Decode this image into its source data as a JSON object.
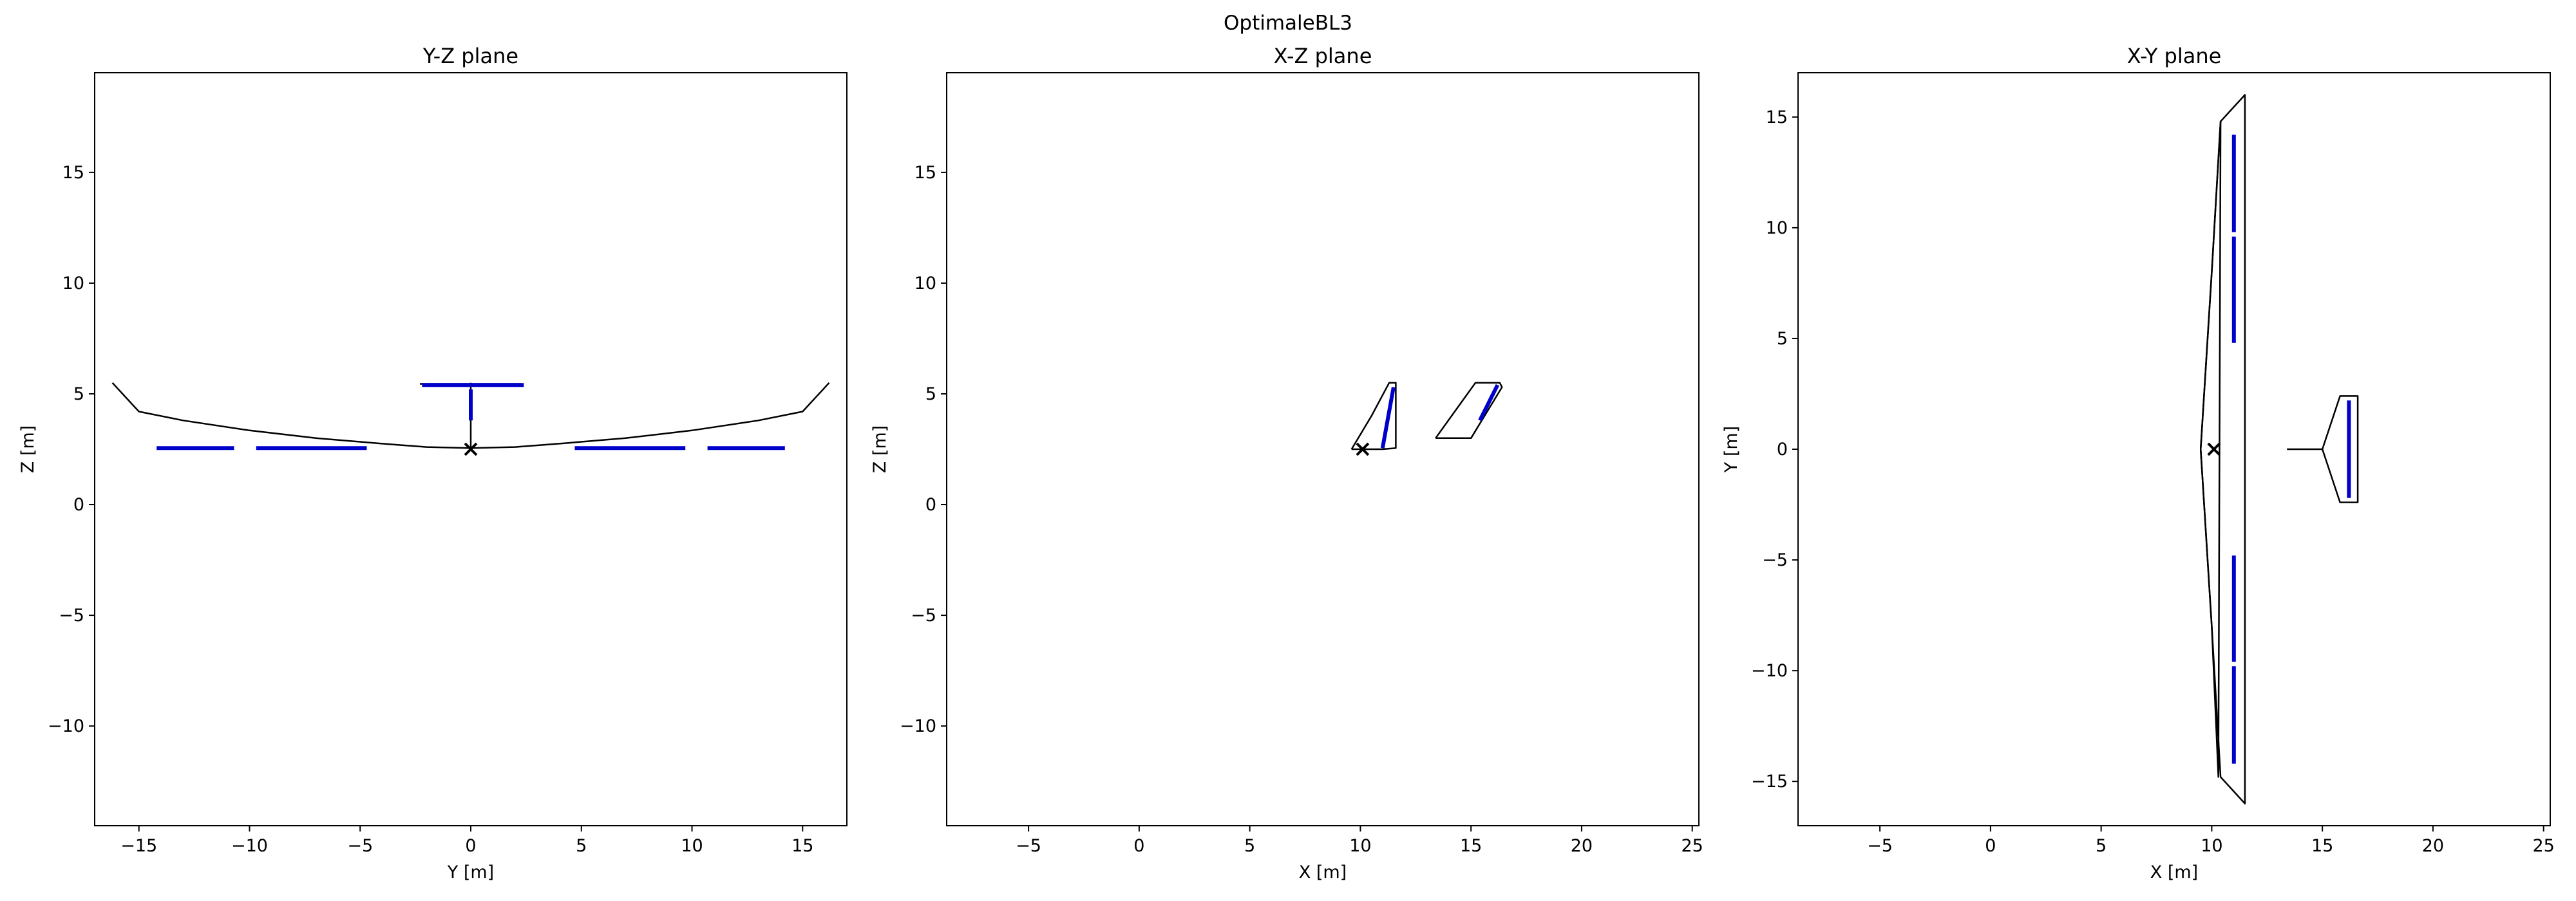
{
  "figure": {
    "suptitle": "OptimaleBL3"
  },
  "chart_data": [
    {
      "type": "line",
      "title": "Y-Z plane",
      "xlabel": "Y [m]",
      "ylabel": "Z [m]",
      "xlim": [
        -17,
        17
      ],
      "ylim": [
        -14.5,
        19.5
      ],
      "xticks": [
        -15,
        -10,
        -5,
        0,
        5,
        10,
        15
      ],
      "yticks": [
        -10,
        -5,
        0,
        5,
        10,
        15
      ],
      "series": [
        {
          "color": "#000000",
          "x": [
            -16.2,
            -15,
            -13,
            -10,
            -7,
            -4,
            -2,
            0,
            2,
            4,
            7,
            10,
            13,
            15,
            16.2
          ],
          "y": [
            5.5,
            4.2,
            3.8,
            3.35,
            3.0,
            2.75,
            2.6,
            2.55,
            2.6,
            2.75,
            3.0,
            3.35,
            3.8,
            4.2,
            5.5
          ]
        },
        {
          "color": "#000000",
          "x": [
            0,
            0
          ],
          "y": [
            2.55,
            5.5
          ]
        },
        {
          "color": "#000000",
          "x": [
            -2.3,
            2.3
          ],
          "y": [
            5.45,
            5.45
          ]
        },
        {
          "color": "#0000cc",
          "x": [
            -14.2,
            -10.7
          ],
          "y": [
            2.55,
            2.55
          ]
        },
        {
          "color": "#0000cc",
          "x": [
            -9.7,
            -4.7
          ],
          "y": [
            2.55,
            2.55
          ]
        },
        {
          "color": "#0000cc",
          "x": [
            4.7,
            9.7
          ],
          "y": [
            2.55,
            2.55
          ]
        },
        {
          "color": "#0000cc",
          "x": [
            10.7,
            14.2
          ],
          "y": [
            2.55,
            2.55
          ]
        },
        {
          "color": "#0000cc",
          "x": [
            -2.2,
            2.4
          ],
          "y": [
            5.4,
            5.4
          ]
        },
        {
          "color": "#0000cc",
          "x": [
            0,
            0
          ],
          "y": [
            3.8,
            5.2
          ]
        }
      ],
      "markers": [
        {
          "x": 0,
          "y": 2.5,
          "symbol": "x"
        }
      ]
    },
    {
      "type": "line",
      "title": "X-Z plane",
      "xlabel": "X [m]",
      "ylabel": "Z [m]",
      "xlim": [
        -8.7,
        25.3
      ],
      "ylim": [
        -14.5,
        19.5
      ],
      "xticks": [
        -5,
        0,
        5,
        10,
        15,
        20,
        25
      ],
      "yticks": [
        -10,
        -5,
        0,
        5,
        10,
        15
      ],
      "series": [
        {
          "color": "#000000",
          "x": [
            9.6,
            11.0,
            11.6,
            11.6,
            11.3,
            10.5,
            9.6
          ],
          "y": [
            2.5,
            2.5,
            2.55,
            5.5,
            5.5,
            4.0,
            2.5
          ]
        },
        {
          "color": "#000000",
          "x": [
            13.4,
            15.0,
            16.4,
            16.3,
            15.2,
            13.4
          ],
          "y": [
            3.0,
            3.0,
            5.3,
            5.5,
            5.5,
            3.0
          ]
        },
        {
          "color": "#0000cc",
          "x": [
            11.0,
            11.5
          ],
          "y": [
            2.55,
            5.3
          ]
        },
        {
          "color": "#0000cc",
          "x": [
            15.4,
            16.2
          ],
          "y": [
            3.8,
            5.4
          ]
        }
      ],
      "markers": [
        {
          "x": 10.1,
          "y": 2.5,
          "symbol": "x"
        }
      ]
    },
    {
      "type": "line",
      "title": "X-Y plane",
      "xlabel": "X [m]",
      "ylabel": "Y [m]",
      "xlim": [
        -8.7,
        25.3
      ],
      "ylim": [
        -17,
        17
      ],
      "xticks": [
        -5,
        0,
        5,
        10,
        15,
        20,
        25
      ],
      "yticks": [
        -15,
        -10,
        -5,
        0,
        5,
        10,
        15
      ],
      "series": [
        {
          "color": "#000000",
          "x": [
            9.5,
            10.0,
            10.4,
            10.3,
            10.0,
            9.5
          ],
          "y": [
            0,
            8,
            14.8,
            -14.8,
            -8,
            0
          ]
        },
        {
          "color": "#000000",
          "x": [
            9.5,
            10.0,
            10.4,
            11.5,
            11.5,
            11.5,
            11.5,
            10.4,
            10.0,
            9.5
          ],
          "y": [
            0,
            8,
            14.8,
            16.0,
            0,
            -16.0,
            -16.0,
            -14.8,
            -8,
            0
          ]
        },
        {
          "color": "#000000",
          "x": [
            13.4,
            15.0
          ],
          "y": [
            0,
            0
          ]
        },
        {
          "color": "#000000",
          "x": [
            15.0,
            15.8,
            16.6,
            16.6,
            15.8,
            15.0
          ],
          "y": [
            0,
            2.4,
            2.4,
            -2.4,
            -2.4,
            0
          ]
        },
        {
          "color": "#0000cc",
          "x": [
            11.0,
            11.0
          ],
          "y": [
            14.2,
            9.8
          ]
        },
        {
          "color": "#0000cc",
          "x": [
            11.0,
            11.0
          ],
          "y": [
            9.6,
            4.8
          ]
        },
        {
          "color": "#0000cc",
          "x": [
            11.0,
            11.0
          ],
          "y": [
            -4.8,
            -9.6
          ]
        },
        {
          "color": "#0000cc",
          "x": [
            11.0,
            11.0
          ],
          "y": [
            -9.8,
            -14.2
          ]
        },
        {
          "color": "#0000cc",
          "x": [
            16.2,
            16.2
          ],
          "y": [
            2.2,
            -2.2
          ]
        }
      ],
      "markers": [
        {
          "x": 10.1,
          "y": 0,
          "symbol": "x"
        }
      ]
    }
  ]
}
